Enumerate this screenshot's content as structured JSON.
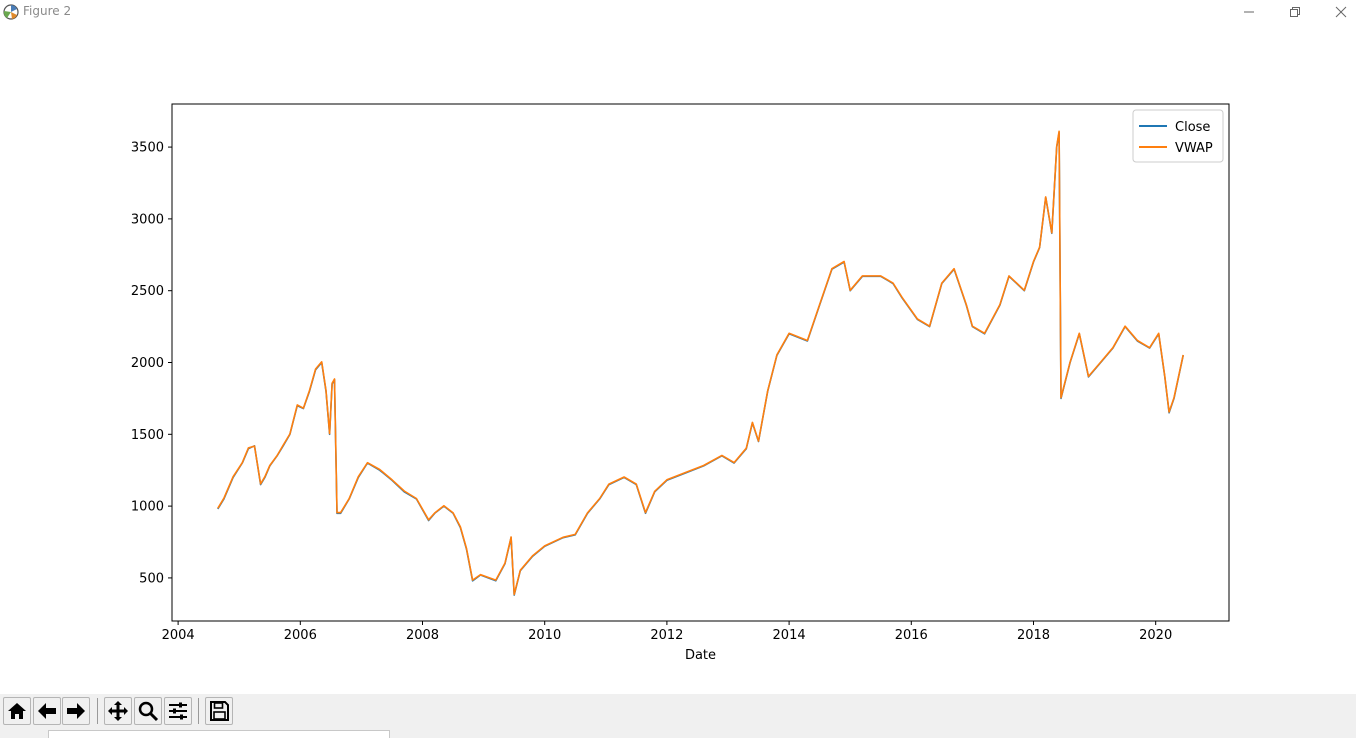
{
  "window": {
    "title": "Figure 2"
  },
  "toolbar": {
    "buttons": [
      "home-icon",
      "back-arrow-icon",
      "forward-arrow-icon",
      "pan-icon",
      "zoom-icon",
      "configure-subplots-icon",
      "save-icon"
    ]
  },
  "colors": {
    "close": "#1f77b4",
    "vwap": "#ff7f0e",
    "toolbar_bg": "#f0f0f0"
  },
  "chart_data": {
    "type": "line",
    "title": "",
    "xlabel": "Date",
    "ylabel": "",
    "xlim": [
      2003.9,
      2021.2
    ],
    "ylim": [
      200,
      3800
    ],
    "xticks": [
      2004,
      2006,
      2008,
      2010,
      2012,
      2014,
      2016,
      2018,
      2020
    ],
    "xtick_labels": [
      "2004",
      "2006",
      "2008",
      "2010",
      "2012",
      "2014",
      "2016",
      "2018",
      "2020"
    ],
    "yticks": [
      500,
      1000,
      1500,
      2000,
      2500,
      3000,
      3500
    ],
    "ytick_labels": [
      "500",
      "1000",
      "1500",
      "2000",
      "2500",
      "3000",
      "3500"
    ],
    "grid": false,
    "legend": "top-right",
    "x": [
      2004.65,
      2004.75,
      2004.9,
      2005.05,
      2005.15,
      2005.25,
      2005.35,
      2005.42,
      2005.5,
      2005.62,
      2005.72,
      2005.83,
      2005.95,
      2006.05,
      2006.15,
      2006.25,
      2006.35,
      2006.42,
      2006.48,
      2006.52,
      2006.56,
      2006.6,
      2006.66,
      2006.8,
      2006.95,
      2007.1,
      2007.3,
      2007.5,
      2007.7,
      2007.9,
      2008.1,
      2008.2,
      2008.35,
      2008.5,
      2008.62,
      2008.72,
      2008.82,
      2008.95,
      2009.2,
      2009.35,
      2009.45,
      2009.5,
      2009.6,
      2009.8,
      2010.0,
      2010.3,
      2010.5,
      2010.7,
      2010.9,
      2011.05,
      2011.3,
      2011.5,
      2011.65,
      2011.8,
      2012.0,
      2012.3,
      2012.6,
      2012.9,
      2013.1,
      2013.3,
      2013.4,
      2013.5,
      2013.65,
      2013.8,
      2014.0,
      2014.3,
      2014.5,
      2014.7,
      2014.9,
      2015.0,
      2015.2,
      2015.5,
      2015.7,
      2015.85,
      2016.1,
      2016.3,
      2016.5,
      2016.7,
      2016.9,
      2017.0,
      2017.2,
      2017.45,
      2017.6,
      2017.85,
      2018.0,
      2018.1,
      2018.2,
      2018.3,
      2018.38,
      2018.42,
      2018.45,
      2018.6,
      2018.75,
      2018.9,
      2019.1,
      2019.3,
      2019.5,
      2019.7,
      2019.9,
      2020.05,
      2020.15,
      2020.22,
      2020.3,
      2020.45
    ],
    "series": [
      {
        "name": "Close",
        "values": [
          980,
          1050,
          1200,
          1300,
          1400,
          1420,
          1150,
          1200,
          1280,
          1350,
          1420,
          1500,
          1700,
          1680,
          1800,
          1950,
          2000,
          1800,
          1500,
          1850,
          1880,
          950,
          950,
          1050,
          1200,
          1300,
          1250,
          1180,
          1100,
          1050,
          900,
          950,
          1000,
          950,
          850,
          700,
          480,
          520,
          480,
          600,
          780,
          380,
          550,
          650,
          720,
          780,
          800,
          950,
          1050,
          1150,
          1200,
          1150,
          950,
          1100,
          1180,
          1230,
          1280,
          1350,
          1300,
          1400,
          1580,
          1450,
          1800,
          2050,
          2200,
          2150,
          2400,
          2650,
          2700,
          2500,
          2600,
          2600,
          2550,
          2450,
          2300,
          2250,
          2550,
          2650,
          2400,
          2250,
          2200,
          2400,
          2600,
          2500,
          2700,
          2800,
          3150,
          2900,
          3500,
          3600,
          1750,
          2000,
          2200,
          1900,
          2000,
          2100,
          2250,
          2150,
          2100,
          2200,
          1900,
          1650,
          1750,
          2050
        ]
      },
      {
        "name": "VWAP",
        "values": [
          985,
          1055,
          1205,
          1302,
          1405,
          1418,
          1155,
          1205,
          1283,
          1352,
          1425,
          1502,
          1705,
          1682,
          1805,
          1955,
          2005,
          1805,
          1505,
          1855,
          1885,
          955,
          955,
          1052,
          1205,
          1302,
          1255,
          1183,
          1105,
          1053,
          905,
          952,
          1003,
          953,
          855,
          705,
          485,
          523,
          485,
          603,
          785,
          385,
          553,
          653,
          723,
          783,
          803,
          953,
          1053,
          1153,
          1203,
          1153,
          955,
          1103,
          1183,
          1233,
          1283,
          1353,
          1303,
          1403,
          1583,
          1453,
          1803,
          2053,
          2203,
          2153,
          2403,
          2653,
          2703,
          2503,
          2603,
          2603,
          2553,
          2453,
          2303,
          2253,
          2553,
          2653,
          2403,
          2253,
          2203,
          2403,
          2603,
          2503,
          2703,
          2803,
          3153,
          2903,
          3505,
          3610,
          1755,
          2003,
          2203,
          1903,
          2003,
          2103,
          2253,
          2153,
          2103,
          2203,
          1903,
          1655,
          1755,
          2053
        ]
      }
    ]
  }
}
